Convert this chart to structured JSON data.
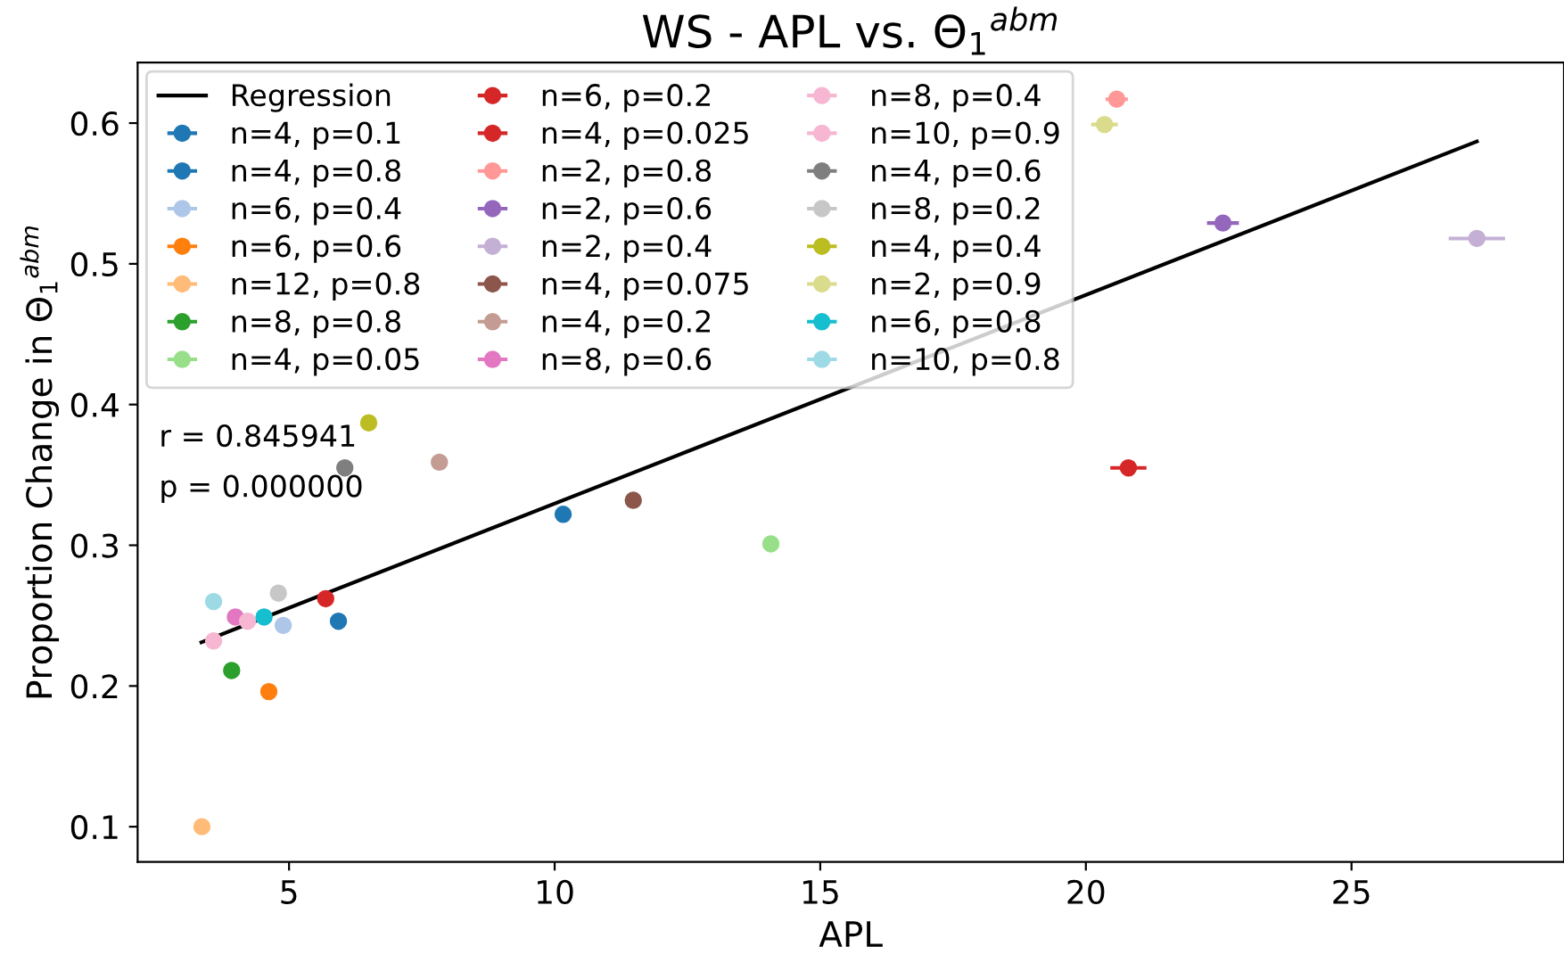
{
  "chart_data": {
    "type": "scatter",
    "title": "WS - APL vs. Θ$_{1}$$^{abm}$",
    "xlabel": "APL",
    "ylabel": "Proportion Change in Θ$_{1}$$^{abm}$",
    "xlim": [
      2.15,
      29.0
    ],
    "ylim": [
      0.075,
      0.643
    ],
    "xticks": [
      5,
      10,
      15,
      20,
      25
    ],
    "yticks": [
      {
        "value": 0.1,
        "label": "0.1"
      },
      {
        "value": 0.2,
        "label": "0.2"
      },
      {
        "value": 0.3,
        "label": "0.3"
      },
      {
        "value": 0.4,
        "label": "0.4"
      },
      {
        "value": 0.5,
        "label": "0.5"
      },
      {
        "value": 0.6,
        "label": "0.6"
      }
    ],
    "grid": false,
    "legend": "top left",
    "marker": "circle",
    "annotations": [
      "r = 0.845941",
      "p = 0.000000"
    ],
    "series": [
      {
        "name": "Regression",
        "type": "line",
        "marker": "none",
        "color": "#000000",
        "x": [
          3.35,
          27.36
        ],
        "values": [
          0.231,
          0.587
        ]
      },
      {
        "name": "n=4, p=0.1",
        "color": "#1f77b4",
        "x": [
          10.16
        ],
        "values": [
          0.322
        ],
        "xerrors": [
          null
        ]
      },
      {
        "name": "n=4, p=0.8",
        "color": "#1f77b4",
        "x": [
          5.93
        ],
        "values": [
          0.246
        ],
        "xerrors": [
          null
        ]
      },
      {
        "name": "n=6, p=0.4",
        "color": "#aec7e8",
        "x": [
          4.89
        ],
        "values": [
          0.243
        ],
        "xerrors": [
          null
        ]
      },
      {
        "name": "n=6, p=0.6",
        "color": "#ff7f0e",
        "x": [
          4.62
        ],
        "values": [
          0.196
        ],
        "xerrors": [
          null
        ]
      },
      {
        "name": "n=12, p=0.8",
        "color": "#ffbb78",
        "x": [
          3.36
        ],
        "values": [
          0.1
        ],
        "xerrors": [
          null
        ]
      },
      {
        "name": "n=8, p=0.8",
        "color": "#2ca02c",
        "x": [
          3.92
        ],
        "values": [
          0.211
        ],
        "xerrors": [
          null
        ]
      },
      {
        "name": "n=4, p=0.05",
        "color": "#98df8a",
        "x": [
          14.07
        ],
        "values": [
          0.301
        ],
        "xerrors": [
          null
        ]
      },
      {
        "name": "n=6, p=0.2",
        "color": "#d62728",
        "x": [
          5.69
        ],
        "values": [
          0.262
        ],
        "xerrors": [
          null
        ]
      },
      {
        "name": "n=4, p=0.025",
        "color": "#d62728",
        "x": [
          20.8
        ],
        "values": [
          0.355
        ],
        "xerrors": [
          0.34
        ]
      },
      {
        "name": "n=2, p=0.8",
        "color": "#ff9896",
        "x": [
          20.58
        ],
        "values": [
          0.617
        ],
        "xerrors": [
          0.21
        ]
      },
      {
        "name": "n=2, p=0.6",
        "color": "#9467bd",
        "x": [
          22.58
        ],
        "values": [
          0.529
        ],
        "xerrors": [
          0.3
        ]
      },
      {
        "name": "n=2, p=0.4",
        "color": "#c5b0d5",
        "x": [
          27.36
        ],
        "values": [
          0.518
        ],
        "xerrors": [
          0.53
        ]
      },
      {
        "name": "n=4, p=0.075",
        "color": "#8c564b",
        "x": [
          11.48
        ],
        "values": [
          0.332
        ],
        "xerrors": [
          null
        ]
      },
      {
        "name": "n=4, p=0.2",
        "color": "#c49c94",
        "x": [
          7.83
        ],
        "values": [
          0.359
        ],
        "xerrors": [
          null
        ]
      },
      {
        "name": "n=8, p=0.6",
        "color": "#e377c2",
        "x": [
          3.99
        ],
        "values": [
          0.249
        ],
        "xerrors": [
          null
        ]
      },
      {
        "name": "n=8, p=0.4",
        "color": "#f7b6d2",
        "x": [
          4.22
        ],
        "values": [
          0.246
        ],
        "xerrors": [
          null
        ]
      },
      {
        "name": "n=10, p=0.9",
        "color": "#f7b6d2",
        "x": [
          3.58
        ],
        "values": [
          0.232
        ],
        "xerrors": [
          null
        ]
      },
      {
        "name": "n=4, p=0.6",
        "color": "#7f7f7f",
        "x": [
          6.05
        ],
        "values": [
          0.355
        ],
        "xerrors": [
          null
        ]
      },
      {
        "name": "n=8, p=0.2",
        "color": "#c7c7c7",
        "x": [
          4.8
        ],
        "values": [
          0.266
        ],
        "xerrors": [
          null
        ]
      },
      {
        "name": "n=4, p=0.4",
        "color": "#bcbd22",
        "x": [
          6.5
        ],
        "values": [
          0.387
        ],
        "xerrors": [
          null
        ]
      },
      {
        "name": "n=2, p=0.9",
        "color": "#dbdb8d",
        "x": [
          20.35
        ],
        "values": [
          0.599
        ],
        "xerrors": [
          0.25
        ]
      },
      {
        "name": "n=6, p=0.8",
        "color": "#17becf",
        "x": [
          4.53
        ],
        "values": [
          0.249
        ],
        "xerrors": [
          null
        ]
      },
      {
        "name": "n=10, p=0.8",
        "color": "#9edae5",
        "x": [
          3.58
        ],
        "values": [
          0.26
        ],
        "xerrors": [
          null
        ]
      }
    ]
  }
}
